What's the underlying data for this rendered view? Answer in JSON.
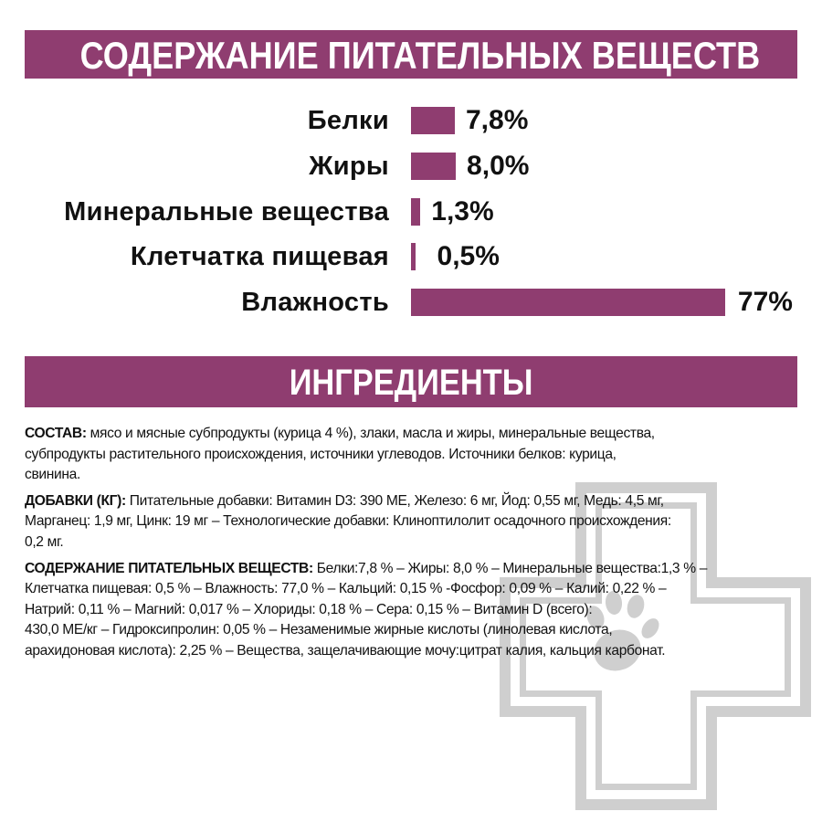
{
  "header": {
    "title": "СОДЕРЖАНИЕ ПИТАТЕЛЬНЫХ ВЕЩЕСТВ"
  },
  "colors": {
    "accent": "#8f3d70",
    "watermark": "#cfcfcf",
    "text": "#111111"
  },
  "chart_data": {
    "type": "bar",
    "orientation": "horizontal",
    "categories": [
      "Белки",
      "Жиры",
      "Минеральные вещества",
      "Клетчатка пищевая",
      "Влажность"
    ],
    "values": [
      7.8,
      8.0,
      1.3,
      0.5,
      77
    ],
    "value_labels": [
      "7,8%",
      "8,0%",
      "1,3%",
      "0,5%",
      "77%"
    ],
    "unit": "%",
    "grid": false
  },
  "ingredients": {
    "title": "ИНГРЕДИЕНТЫ",
    "composition": {
      "label": "СОСТАВ:",
      "lines": [
        " мясо и мясные субпродукты (курица 4 %), злаки, масла и жиры, минеральные вещества,",
        "субпродукты растительного происхождения, источники углеводов. Источники белков: курица,",
        "свинина."
      ]
    },
    "additives": {
      "label": "ДОБАВКИ (КГ):",
      "lines": [
        " Питательные добавки: Витамин D3: 390 МЕ, Железо: 6 мг, Йод: 0,55 мг, Медь: 4,5 мг,",
        "Марганец: 1,9 мг, Цинк: 19 мг – Технологические добавки: Клиноптилолит осадочного происхождения:",
        "0,2 мг."
      ]
    },
    "nutrients": {
      "label": "СОДЕРЖАНИЕ ПИТАТЕЛЬНЫХ ВЕЩЕСТВ:",
      "lines": [
        " Белки:7,8 % – Жиры: 8,0 % – Минеральные вещества:1,3 % –",
        "Клетчатка пищевая: 0,5 % – Влажность: 77,0 % – Кальций: 0,15 % -Фосфор: 0,09 % – Калий: 0,22 % –",
        "Натрий: 0,11 % – Магний: 0,017 % – Хлориды: 0,18 % – Сера: 0,15 % – Витамин D (всего):",
        "430,0 МЕ/кг – Гидроксипролин: 0,05 % – Незаменимые жирные кислоты (линолевая кислота,",
        "арахидоновая кислота): 2,25 % – Вещества, защелачивающие мочу:цитрат калия, кальция карбонат."
      ]
    }
  },
  "watermark": {
    "icon": "veterinary-cross-paw-icon"
  }
}
